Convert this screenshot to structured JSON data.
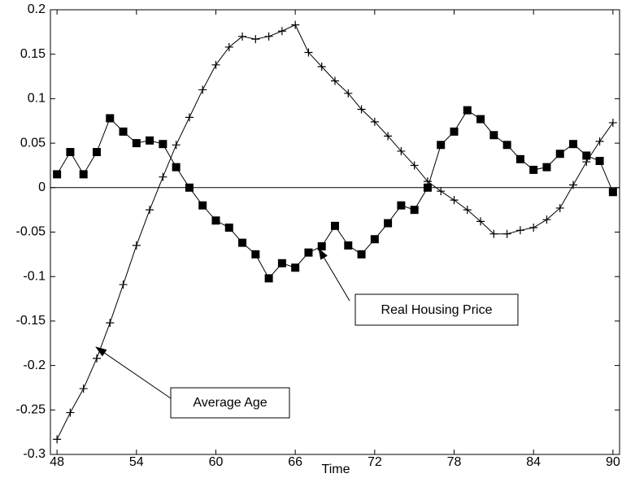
{
  "chart_data": {
    "type": "line",
    "xlabel": "Time",
    "x": [
      48,
      49,
      50,
      51,
      52,
      53,
      54,
      55,
      56,
      57,
      58,
      59,
      60,
      61,
      62,
      63,
      64,
      65,
      66,
      67,
      68,
      69,
      70,
      71,
      72,
      73,
      74,
      75,
      76,
      77,
      78,
      79,
      80,
      81,
      82,
      83,
      84,
      85,
      86,
      87,
      88,
      89,
      90
    ],
    "series": [
      {
        "name": "Real Housing Price",
        "color": "#000000",
        "marker": "square",
        "values": [
          0.015,
          0.04,
          0.015,
          0.04,
          0.078,
          0.063,
          0.05,
          0.053,
          0.049,
          0.023,
          0.0,
          -0.02,
          -0.037,
          -0.045,
          -0.062,
          -0.075,
          -0.102,
          -0.085,
          -0.09,
          -0.073,
          -0.066,
          -0.043,
          -0.065,
          -0.075,
          -0.058,
          -0.04,
          -0.02,
          -0.025,
          0.0,
          0.048,
          0.063,
          0.087,
          0.077,
          0.059,
          0.048,
          0.032,
          0.02,
          0.023,
          0.038,
          0.049,
          0.036,
          0.03,
          -0.005
        ]
      },
      {
        "name": "Average Age",
        "color": "#000000",
        "marker": "plus",
        "values": [
          -0.283,
          -0.253,
          -0.226,
          -0.192,
          -0.152,
          -0.109,
          -0.065,
          -0.025,
          0.012,
          0.048,
          0.079,
          0.11,
          0.138,
          0.158,
          0.17,
          0.167,
          0.17,
          0.176,
          0.183,
          0.152,
          0.136,
          0.12,
          0.106,
          0.088,
          0.074,
          0.058,
          0.041,
          0.025,
          0.007,
          -0.004,
          -0.014,
          -0.025,
          -0.038,
          -0.052,
          -0.052,
          -0.048,
          -0.045,
          -0.036,
          -0.023,
          0.003,
          0.029,
          0.052,
          0.073
        ]
      }
    ],
    "xlim": [
      47.5,
      90.5
    ],
    "xticks": [
      48,
      54,
      60,
      66,
      72,
      78,
      84,
      90
    ],
    "ylim": [
      -0.3,
      0.2
    ],
    "yticks": [
      -0.3,
      -0.25,
      -0.2,
      -0.15,
      -0.1,
      -0.05,
      0,
      0.05,
      0.1,
      0.15,
      0.2
    ],
    "zero_line": true
  }
}
